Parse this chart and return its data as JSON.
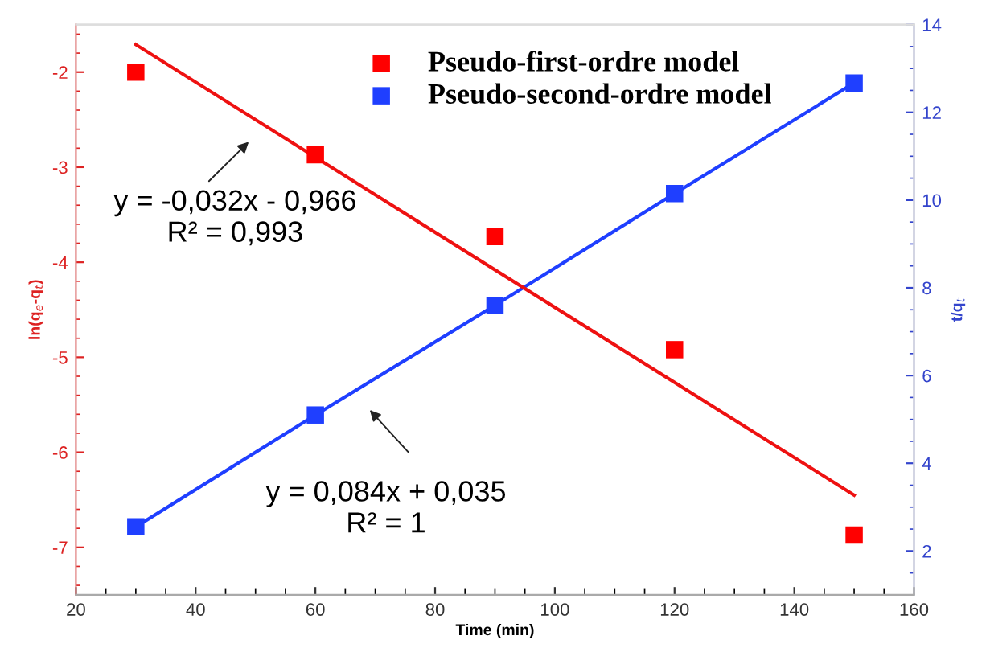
{
  "chart_data": {
    "type": "scatter",
    "xlabel": "Time (min)",
    "ylabel": "ln(q$_{e}$-q$_{t}$)",
    "y2label": "t/q$_{t}$",
    "series": [
      {
        "name": "Pseudo-first-ordre model",
        "color": "#ff0000",
        "marker": "square",
        "x": [
          30,
          60,
          90,
          120,
          150
        ],
        "values": [
          -2.0,
          -2.87,
          -3.73,
          -4.92,
          -6.87
        ]
      },
      {
        "name": "Pseudo-second-ordre model",
        "color": "#1f3fff",
        "axis": "y2",
        "marker": "square",
        "x": [
          30,
          60,
          90,
          120,
          150
        ],
        "values": [
          2.55,
          5.1,
          7.6,
          10.15,
          12.67
        ]
      },
      {
        "type": "line",
        "color": "#ee1111",
        "x": [
          30,
          150
        ],
        "values": [
          -1.71,
          -6.45
        ]
      },
      {
        "type": "line",
        "color": "#1f3fff",
        "axis": "y2",
        "x": [
          30,
          60,
          90,
          120,
          150
        ],
        "values": [
          2.55,
          5.1,
          7.6,
          10.15,
          12.67
        ]
      }
    ],
    "annotations": [
      "y = -0,032x - 0,966\nR² = 0,993",
      "y = 0,084x + 0,035\nR² = 1"
    ],
    "xlim": [
      20,
      160
    ],
    "xticks": [
      20,
      40,
      60,
      80,
      100,
      120,
      140,
      160
    ],
    "ylim": [
      -7.5,
      -1.5
    ],
    "yticks": [
      -7,
      -6,
      -5,
      -4,
      -3,
      -2
    ],
    "y2lim": [
      1,
      14
    ],
    "y2ticks": [
      2,
      4,
      6,
      8,
      10,
      12,
      14
    ],
    "legend": "top",
    "grid": false
  }
}
